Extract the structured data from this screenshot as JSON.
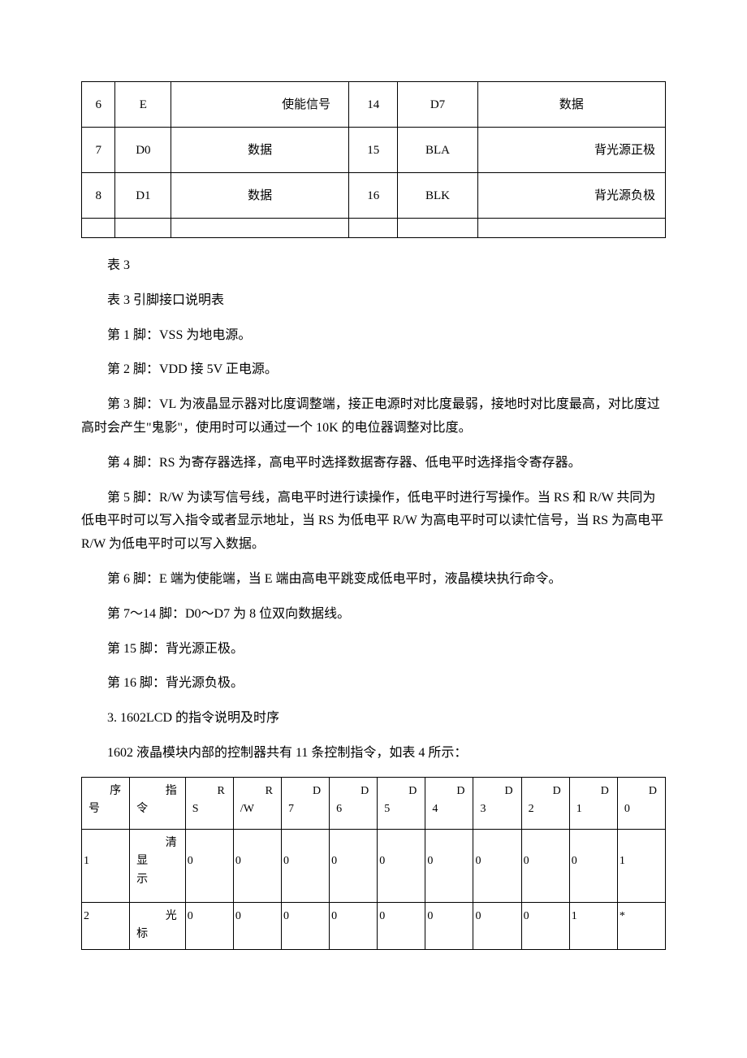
{
  "table1": {
    "rows": [
      [
        "6",
        "E",
        "使能信号",
        "14",
        "D7",
        "数据"
      ],
      [
        "7",
        "D0",
        "数据",
        "15",
        "BLA",
        "背光源正极"
      ],
      [
        "8",
        "D1",
        "数据",
        "16",
        "BLK",
        "背光源负极"
      ]
    ]
  },
  "paragraphs": {
    "p1": "表 3",
    "p2": "表 3 引脚接口说明表",
    "p3": "第 1 脚：VSS 为地电源。",
    "p4": "第 2 脚：VDD 接 5V 正电源。",
    "p5": "第 3 脚：VL 为液晶显示器对比度调整端，接正电源时对比度最弱，接地时对比度最高，对比度过高时会产生\"鬼影\"，使用时可以通过一个 10K 的电位器调整对比度。",
    "p6": "第 4 脚：RS 为寄存器选择，高电平时选择数据寄存器、低电平时选择指令寄存器。",
    "p7": "第 5 脚：R/W 为读写信号线，高电平时进行读操作，低电平时进行写操作。当 RS 和 R/W 共同为低电平时可以写入指令或者显示地址，当 RS 为低电平 R/W 为高电平时可以读忙信号，当 RS 为高电平 R/W 为低电平时可以写入数据。",
    "p8": "第 6 脚：E 端为使能端，当 E 端由高电平跳变成低电平时，液晶模块执行命令。",
    "p9": "第 7～14 脚：D0～D7 为 8 位双向数据线。",
    "p10": "第 15 脚：背光源正极。",
    "p11": "第 16 脚：背光源负极。",
    "p12": "3. 1602LCD 的指令说明及时序",
    "p13": "1602 液晶模块内部的控制器共有 11 条控制指令，如表 4 所示："
  },
  "table2": {
    "header": {
      "c1_top": "序",
      "c1_bot": "号",
      "c2_top": "指",
      "c2_bot": "令",
      "c3_top": "R",
      "c3_bot": "S",
      "c4_top": "R",
      "c4_bot": "/W",
      "c5_top": "D",
      "c5_bot": "7",
      "c6_top": "D",
      "c6_bot": "6",
      "c7_top": "D",
      "c7_bot": "5",
      "c8_top": "D",
      "c8_bot": "4",
      "c9_top": "D",
      "c9_bot": "3",
      "c10_top": "D",
      "c10_bot": "2",
      "c11_top": "D",
      "c11_bot": "1",
      "c12_top": "D",
      "c12_bot": "0"
    },
    "row1": {
      "num": "1",
      "cmd_top": "清",
      "cmd_mid": "显",
      "cmd_bot": "示",
      "rs": "0",
      "rw": "0",
      "d7": "0",
      "d6": "0",
      "d5": "0",
      "d4": "0",
      "d3": "0",
      "d2": "0",
      "d1": "0",
      "d0": "1"
    },
    "row2": {
      "num": "2",
      "cmd_top": "光",
      "cmd_bot": "标",
      "rs": "0",
      "rw": "0",
      "d7": "0",
      "d6": "0",
      "d5": "0",
      "d4": "0",
      "d3": "0",
      "d2": "0",
      "d1": "1",
      "d0": "*"
    }
  }
}
